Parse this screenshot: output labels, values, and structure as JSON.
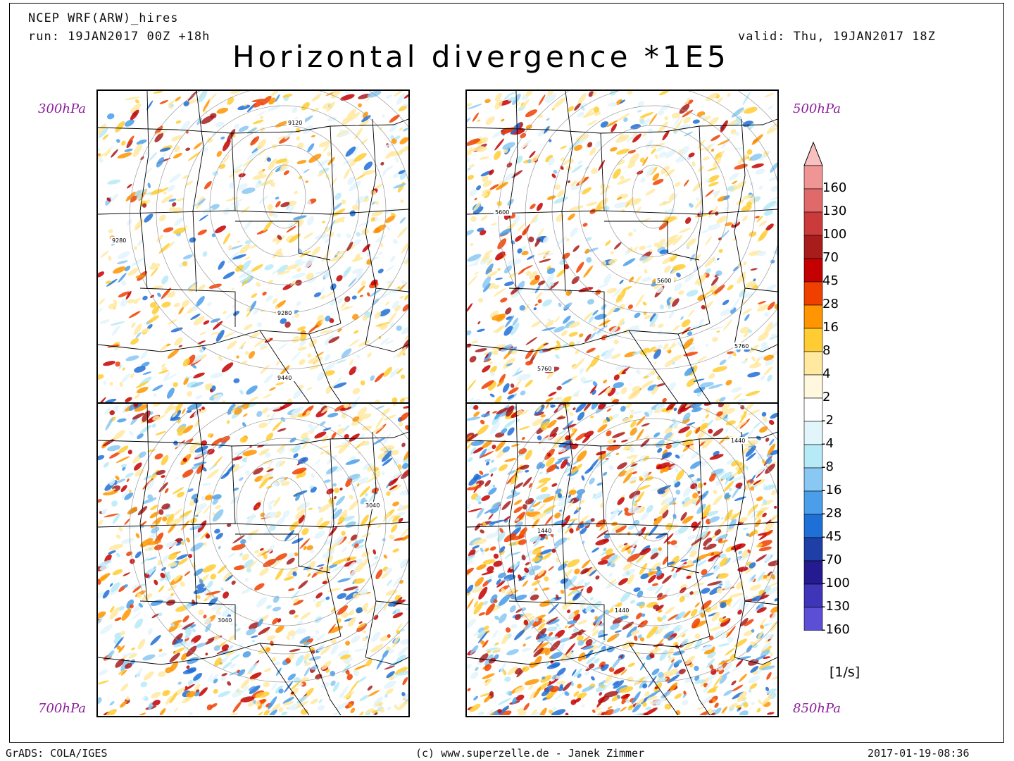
{
  "header": {
    "model": "NCEP WRF(ARW)_hires",
    "run": "run: 19JAN2017 00Z +18h",
    "valid": "valid: Thu, 19JAN2017 18Z",
    "title": "Horizontal divergence *1E5"
  },
  "panels": [
    {
      "level": "300hPa",
      "contours": [
        "9120",
        "9280",
        "9280",
        "9440"
      ]
    },
    {
      "level": "500hPa",
      "contours": [
        "5600",
        "5600",
        "5760",
        "5760"
      ]
    },
    {
      "level": "700hPa",
      "contours": [
        "3040",
        "3040"
      ]
    },
    {
      "level": "850hPa",
      "contours": [
        "1440",
        "1440",
        "1440"
      ]
    }
  ],
  "colorbar": {
    "labels": [
      "160",
      "130",
      "100",
      "70",
      "45",
      "28",
      "16",
      "8",
      "4",
      "2",
      "-2",
      "-4",
      "-8",
      "-16",
      "-28",
      "-45",
      "-70",
      "-100",
      "-130",
      "-160"
    ],
    "colors": [
      "#f9c0c0",
      "#f09595",
      "#e06a6a",
      "#cc3b3b",
      "#a81c1c",
      "#c40000",
      "#f04000",
      "#ff9500",
      "#ffcc33",
      "#ffe9a0",
      "#fff8df",
      "#ffffff",
      "#e2f5fb",
      "#b7eaf7",
      "#89c8f2",
      "#4a9eea",
      "#1e6fd6",
      "#1e3fa6",
      "#251a8f",
      "#3f35b8",
      "#5c4fd6",
      "#7e74e8",
      "#aa9ef8"
    ],
    "unit": "[1/s]"
  },
  "footer": {
    "left": "GrADS: COLA/IGES",
    "center": "(c) www.superzelle.de - Janek Zimmer",
    "right": "2017-01-19-08:36"
  }
}
